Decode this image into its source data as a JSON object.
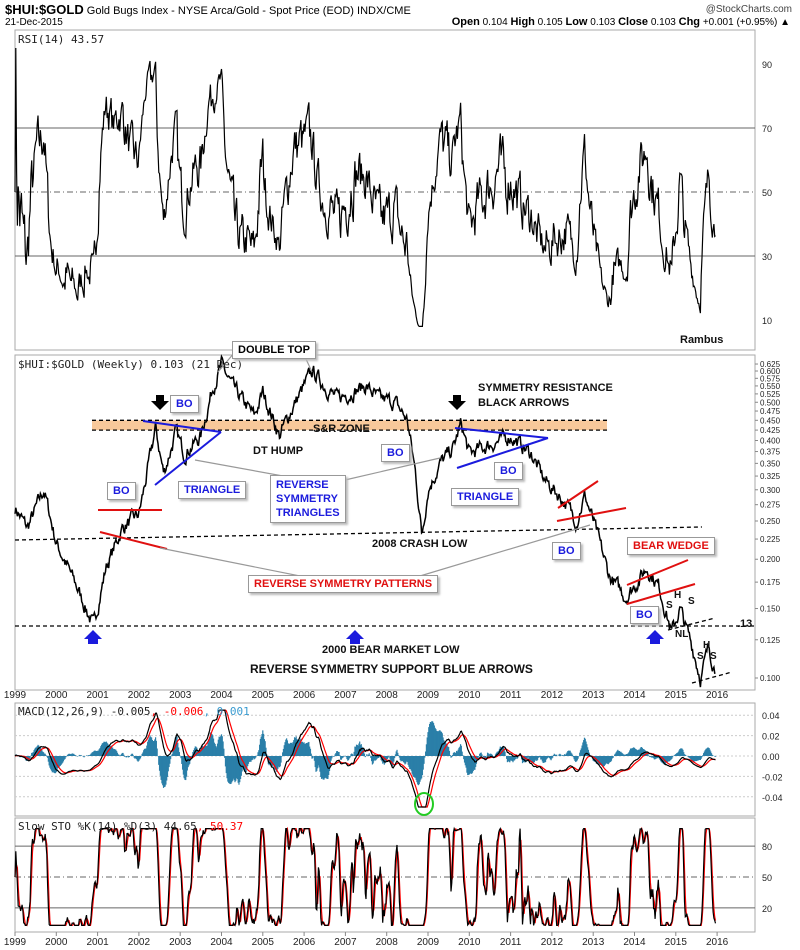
{
  "header": {
    "symbol": "$HUI:$GOLD",
    "description": "Gold Bugs Index - NYSE Arca/Gold - Spot Price (EOD) INDX/CME",
    "watermark": "@StockCharts.com",
    "date": "21-Dec-2015",
    "open_label": "Open",
    "open": "0.104",
    "high_label": "High",
    "high": "0.105",
    "low_label": "Low",
    "low": "0.103",
    "close_label": "Close",
    "close": "0.103",
    "chg_label": "Chg",
    "chg": "+0.001 (+0.95%)"
  },
  "chart_data": [
    {
      "type": "line",
      "title": "RSI(14) 43.57",
      "yticks": [
        "90",
        "70",
        "50",
        "30",
        "10"
      ],
      "ylim": [
        0,
        100
      ],
      "reference_lines": [
        70,
        50,
        30
      ],
      "annotation": "Rambus"
    },
    {
      "type": "line",
      "title": "$HUI:$GOLD (Weekly) 0.103 (21 Dec)",
      "scale": "log",
      "ylim": [
        0.095,
        0.63
      ],
      "yticks": [
        "0.625",
        "0.600",
        "0.575",
        "0.550",
        "0.525",
        "0.500",
        "0.475",
        "0.450",
        "0.425",
        "0.400",
        "0.375",
        "0.350",
        "0.325",
        "0.300",
        "0.275",
        "0.250",
        "0.225",
        "0.200",
        "0.175",
        "0.150",
        "0.125",
        "0.100"
      ],
      "keypoints": [
        [
          1999.0,
          0.27
        ],
        [
          1999.3,
          0.24
        ],
        [
          1999.7,
          0.3
        ],
        [
          2000.0,
          0.22
        ],
        [
          2000.5,
          0.17
        ],
        [
          2000.9,
          0.135
        ],
        [
          2001.2,
          0.19
        ],
        [
          2001.6,
          0.24
        ],
        [
          2002.0,
          0.26
        ],
        [
          2002.2,
          0.33
        ],
        [
          2002.4,
          0.43
        ],
        [
          2002.6,
          0.33
        ],
        [
          2002.9,
          0.42
        ],
        [
          2003.1,
          0.37
        ],
        [
          2003.5,
          0.41
        ],
        [
          2003.8,
          0.55
        ],
        [
          2004.0,
          0.62
        ],
        [
          2004.3,
          0.54
        ],
        [
          2004.8,
          0.46
        ],
        [
          2005.0,
          0.53
        ],
        [
          2005.3,
          0.44
        ],
        [
          2005.4,
          0.41
        ],
        [
          2005.7,
          0.48
        ],
        [
          2006.2,
          0.6
        ],
        [
          2006.5,
          0.55
        ],
        [
          2006.8,
          0.51
        ],
        [
          2007.5,
          0.55
        ],
        [
          2007.8,
          0.51
        ],
        [
          2008.2,
          0.5
        ],
        [
          2008.5,
          0.45
        ],
        [
          2008.7,
          0.33
        ],
        [
          2008.85,
          0.23
        ],
        [
          2009.0,
          0.3
        ],
        [
          2009.3,
          0.35
        ],
        [
          2009.6,
          0.38
        ],
        [
          2009.8,
          0.44
        ],
        [
          2010.0,
          0.37
        ],
        [
          2010.5,
          0.39
        ],
        [
          2011.0,
          0.41
        ],
        [
          2011.5,
          0.37
        ],
        [
          2011.8,
          0.32
        ],
        [
          2012.3,
          0.28
        ],
        [
          2012.6,
          0.25
        ],
        [
          2012.8,
          0.29
        ],
        [
          2013.0,
          0.25
        ],
        [
          2013.4,
          0.18
        ],
        [
          2013.8,
          0.16
        ],
        [
          2014.3,
          0.19
        ],
        [
          2014.6,
          0.17
        ],
        [
          2014.9,
          0.13
        ],
        [
          2015.1,
          0.15
        ],
        [
          2015.4,
          0.12
        ],
        [
          2015.6,
          0.1
        ],
        [
          2015.8,
          0.12
        ],
        [
          2015.97,
          0.103
        ]
      ],
      "annotations": {
        "double_top": "DOUBLE TOP",
        "bo": "BO",
        "triangle": "TRIANGLE",
        "sr_zone": "S&R ZONE",
        "dt_hump": "DT HUMP",
        "rst_1": "REVERSE",
        "rst_2": "SYMMETRY",
        "rst_3": "TRIANGLES",
        "sym_res_1": "SYMMETRY RESISTANCE",
        "sym_res_2": "BLACK ARROWS",
        "crash_low": "2008 CRASH LOW",
        "rsp": "REVERSE SYMMETRY PATTERNS",
        "bear_wedge": "BEAR WEDGE",
        "bear_low": "2000 BEAR MARKET LOW",
        "support": "REVERSE SYMMETRY SUPPORT BLUE ARROWS",
        "level": ".13",
        "s": "S",
        "h": "H",
        "nl": "NL"
      }
    },
    {
      "type": "line",
      "title_main": "MACD(12,26,9) -0.005",
      "title_signal": ", -0.006",
      "title_hist": ", 0.001",
      "yticks": [
        "0.04",
        "0.02",
        "0.00",
        "-0.02",
        "-0.04"
      ],
      "ylim": [
        -0.055,
        0.05
      ]
    },
    {
      "type": "line",
      "title_main": "Slow STO %K(14) %D(3) 44.65",
      "title_d": ", 50.37",
      "yticks": [
        "80",
        "50",
        "20"
      ],
      "ylim": [
        0,
        100
      ]
    }
  ],
  "x_axis": {
    "years": [
      "1999",
      "2000",
      "2001",
      "2002",
      "2003",
      "2004",
      "2005",
      "2006",
      "2007",
      "2008",
      "2009",
      "2010",
      "2011",
      "2012",
      "2013",
      "2014",
      "2015",
      "2016"
    ]
  },
  "colors": {
    "price": "#000000",
    "signal": "#ff0000",
    "hist": "#2a7fa8",
    "zone": "#f8c89a",
    "blue": "#1b1bdd",
    "red": "#e01010",
    "circle": "#22cc22"
  }
}
